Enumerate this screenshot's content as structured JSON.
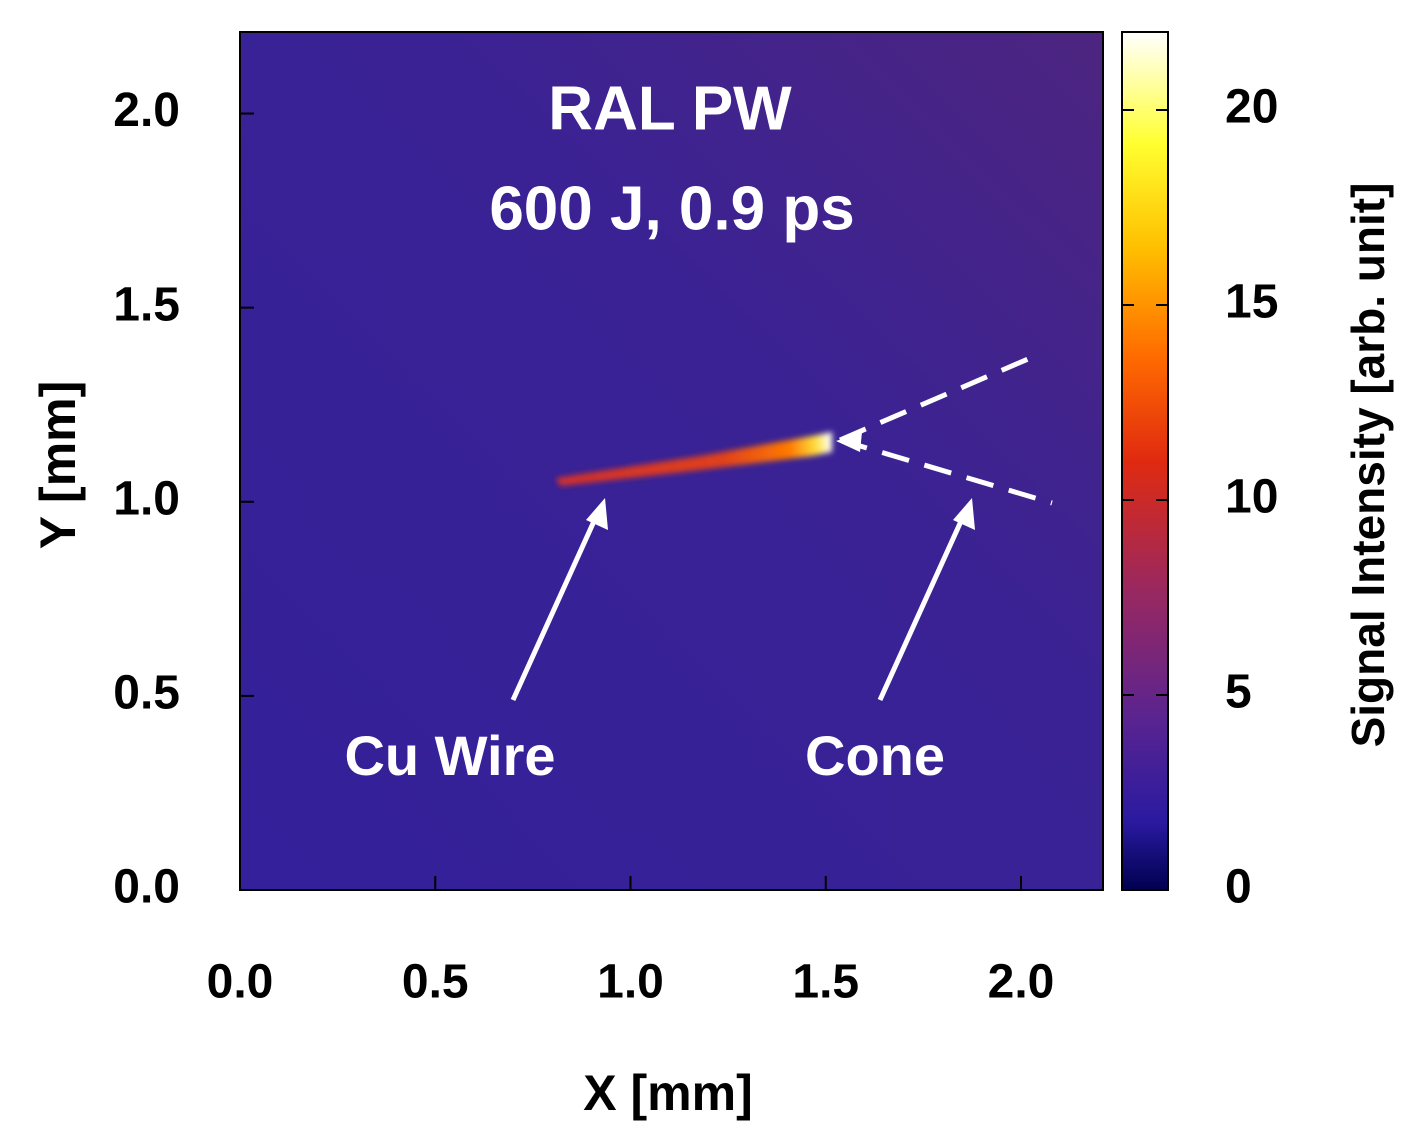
{
  "chart_data": {
    "type": "heatmap",
    "title": [
      "RAL PW",
      "600 J, 0.9 ps"
    ],
    "xlabel": "X [mm]",
    "ylabel": "Y [mm]",
    "xlim": [
      0,
      2.21
    ],
    "ylim": [
      0,
      2.21
    ],
    "xticks": [
      {
        "value": 0,
        "label": "0.0"
      },
      {
        "value": 0.5,
        "label": "0.5"
      },
      {
        "value": 1,
        "label": "1.0"
      },
      {
        "value": 1.5,
        "label": "1.5"
      },
      {
        "value": 2,
        "label": "2.0"
      }
    ],
    "yticks": [
      {
        "value": 0,
        "label": "0.0"
      },
      {
        "value": 0.5,
        "label": "0.5"
      },
      {
        "value": 1,
        "label": "1.0"
      },
      {
        "value": 1.5,
        "label": "1.5"
      },
      {
        "value": 2,
        "label": "2.0"
      }
    ],
    "colorbar": {
      "label": "Signal Intensity [arb. unit]",
      "lim": [
        0,
        22
      ],
      "ticks": [
        0,
        5,
        10,
        15,
        20
      ]
    },
    "annotations": [
      "Cu Wire",
      "Cone"
    ]
  }
}
